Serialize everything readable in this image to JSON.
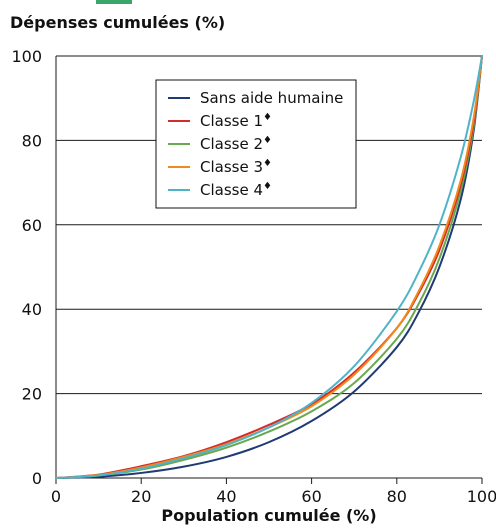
{
  "chart_data": {
    "type": "line",
    "ylabel": "Dépenses cumulées (%)",
    "xlabel": "Population cumulée (%)",
    "xlim": [
      0,
      100
    ],
    "ylim": [
      0,
      100
    ],
    "xticks": [
      0,
      20,
      40,
      60,
      80,
      100
    ],
    "yticks": [
      0,
      20,
      40,
      60,
      80,
      100
    ],
    "grid": "horizontal",
    "legend_position": "top-center",
    "series": [
      {
        "name": "Sans aide humaine",
        "marker": "",
        "color": "#1f3b73",
        "x": [
          0,
          10,
          20,
          30,
          40,
          50,
          60,
          70,
          80,
          85,
          90,
          95,
          98,
          100
        ],
        "y": [
          0,
          0.3,
          1.2,
          2.7,
          5,
          8.5,
          13.5,
          20.5,
          31,
          39,
          50,
          66,
          82,
          100
        ]
      },
      {
        "name": "Classe 1",
        "marker": "♦",
        "color": "#d62b2b",
        "x": [
          0,
          10,
          20,
          30,
          40,
          50,
          60,
          70,
          80,
          85,
          90,
          95,
          98,
          100
        ],
        "y": [
          0,
          0.8,
          2.8,
          5.2,
          8.5,
          12.6,
          17.5,
          25,
          35.5,
          43.5,
          54,
          69.5,
          84,
          100
        ]
      },
      {
        "name": "Classe 2",
        "marker": "♦",
        "color": "#6aa84f",
        "x": [
          0,
          10,
          20,
          30,
          40,
          50,
          60,
          70,
          80,
          85,
          90,
          95,
          98,
          100
        ],
        "y": [
          0,
          0.6,
          2,
          4.3,
          7.2,
          11,
          15.8,
          22.5,
          33,
          41,
          52,
          68,
          83,
          100
        ]
      },
      {
        "name": "Classe 3",
        "marker": "♦",
        "color": "#f08a1c",
        "x": [
          0,
          10,
          20,
          30,
          40,
          50,
          60,
          70,
          80,
          85,
          90,
          95,
          98,
          100
        ],
        "y": [
          0,
          0.7,
          2.5,
          5,
          8,
          12,
          17,
          24.5,
          35.5,
          44,
          55,
          70.5,
          85,
          100
        ]
      },
      {
        "name": "Classe 4",
        "marker": "♦",
        "color": "#4fb3c8",
        "x": [
          0,
          10,
          20,
          30,
          40,
          50,
          60,
          70,
          80,
          85,
          90,
          95,
          98,
          100
        ],
        "y": [
          0,
          0.6,
          2.2,
          4.7,
          7.8,
          12,
          17.8,
          26.5,
          39.5,
          48.5,
          60,
          76,
          89,
          100
        ]
      }
    ]
  }
}
